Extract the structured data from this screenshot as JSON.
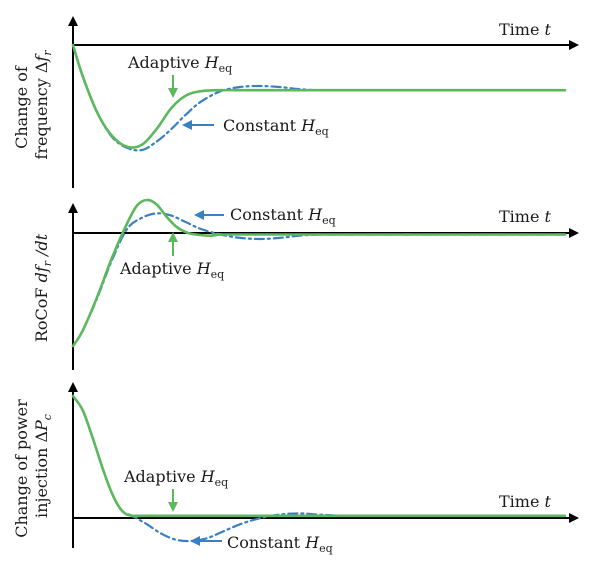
{
  "colors": {
    "axis": "#000000",
    "adaptive": "#5cb85c",
    "constant": "#3a7fc1"
  },
  "chart_data": [
    {
      "type": "line",
      "id": "panel-frequency",
      "ylabel_lines": [
        "Change of",
        "frequency Δ"
      ],
      "ylabel_sub": "r",
      "ylabel_sub_letter": "f",
      "xlabel": "Time ",
      "xlabel_var": "t",
      "xlim": [
        0,
        1
      ],
      "ylim": [
        -1.05,
        0.6
      ],
      "zero_at_top": true,
      "series": [
        {
          "name": "Adaptive H_eq",
          "style": "solid",
          "color": "adaptive",
          "x": [
            0,
            0.02,
            0.05,
            0.08,
            0.11,
            0.14,
            0.17,
            0.2,
            0.23,
            0.26,
            0.3,
            0.35,
            0.4,
            0.5,
            0.6,
            1.0
          ],
          "y": [
            0,
            -0.3,
            -0.65,
            -0.87,
            -0.97,
            -0.95,
            -0.8,
            -0.6,
            -0.48,
            -0.44,
            -0.43,
            -0.43,
            -0.43,
            -0.43,
            -0.43,
            -0.43
          ]
        },
        {
          "name": "Constant H_eq",
          "style": "dash-dot",
          "color": "constant",
          "x": [
            0,
            0.02,
            0.05,
            0.08,
            0.11,
            0.14,
            0.17,
            0.2,
            0.23,
            0.26,
            0.3,
            0.34,
            0.38,
            0.42,
            0.46,
            0.5,
            0.55,
            0.6,
            1.0
          ],
          "y": [
            0,
            -0.3,
            -0.65,
            -0.88,
            -0.98,
            -1.0,
            -0.92,
            -0.8,
            -0.66,
            -0.54,
            -0.44,
            -0.4,
            -0.39,
            -0.4,
            -0.42,
            -0.43,
            -0.43,
            -0.43,
            -0.43
          ]
        }
      ],
      "annotations": [
        {
          "prefix": "Adaptive ",
          "var": "H",
          "sub": "eq",
          "series": "Adaptive H_eq"
        },
        {
          "prefix": "Constant ",
          "var": "H",
          "sub": "eq",
          "series": "Constant H_eq"
        }
      ]
    },
    {
      "type": "line",
      "id": "panel-rocof",
      "ylabel_lines": [
        "RoCoF "
      ],
      "ylabel_var1": "df",
      "ylabel_sub": "r",
      "ylabel_tail": " /dt",
      "xlabel": "Time ",
      "xlabel_var": "t",
      "xlim": [
        0,
        1
      ],
      "ylim": [
        -1.05,
        0.35
      ],
      "series": [
        {
          "name": "Adaptive H_eq",
          "style": "solid",
          "color": "adaptive",
          "x": [
            0,
            0.02,
            0.05,
            0.08,
            0.11,
            0.13,
            0.15,
            0.17,
            0.19,
            0.21,
            0.23,
            0.25,
            0.28,
            0.3,
            0.35,
            1.0
          ],
          "y": [
            -1.0,
            -0.86,
            -0.55,
            -0.2,
            0.1,
            0.26,
            0.31,
            0.27,
            0.16,
            0.07,
            0.02,
            0.0,
            -0.01,
            0.0,
            0.0,
            0.0
          ]
        },
        {
          "name": "Constant H_eq",
          "style": "dash-dot",
          "color": "constant",
          "x": [
            0,
            0.02,
            0.05,
            0.08,
            0.11,
            0.14,
            0.17,
            0.2,
            0.23,
            0.26,
            0.3,
            0.34,
            0.38,
            0.42,
            0.46,
            0.5,
            0.55,
            1.0
          ],
          "y": [
            -1.0,
            -0.86,
            -0.56,
            -0.22,
            0.05,
            0.15,
            0.19,
            0.17,
            0.11,
            0.05,
            0.0,
            -0.03,
            -0.04,
            -0.03,
            -0.01,
            0.0,
            0.0,
            0.0
          ]
        }
      ],
      "annotations": [
        {
          "prefix": "Constant ",
          "var": "H",
          "sub": "eq",
          "series": "Constant H_eq"
        },
        {
          "prefix": "Adaptive ",
          "var": "H",
          "sub": "eq",
          "series": "Adaptive H_eq"
        }
      ]
    },
    {
      "type": "line",
      "id": "panel-power",
      "ylabel_lines": [
        "Change of power",
        "injection Δ"
      ],
      "ylabel_var1": "P",
      "ylabel_sub": "c",
      "xlabel": "Time ",
      "xlabel_var": "t",
      "xlim": [
        0,
        1
      ],
      "ylim": [
        -0.25,
        1.05
      ],
      "series": [
        {
          "name": "Adaptive H_eq",
          "style": "solid",
          "color": "adaptive",
          "x": [
            0,
            0.02,
            0.04,
            0.06,
            0.08,
            0.1,
            0.12,
            0.15,
            0.2,
            1.0
          ],
          "y": [
            1.0,
            0.88,
            0.65,
            0.4,
            0.18,
            0.04,
            0.0,
            0.0,
            0.0,
            0.0
          ]
        },
        {
          "name": "Constant H_eq",
          "style": "dash-dot",
          "color": "constant",
          "x": [
            0,
            0.02,
            0.04,
            0.06,
            0.08,
            0.1,
            0.12,
            0.15,
            0.18,
            0.21,
            0.24,
            0.27,
            0.3,
            0.34,
            0.38,
            0.42,
            0.46,
            0.5,
            0.55,
            0.6,
            1.0
          ],
          "y": [
            1.0,
            0.88,
            0.65,
            0.4,
            0.18,
            0.04,
            0.0,
            -0.07,
            -0.15,
            -0.2,
            -0.21,
            -0.19,
            -0.14,
            -0.07,
            -0.02,
            0.01,
            0.02,
            0.01,
            0.0,
            0.0,
            0.0
          ]
        }
      ],
      "annotations": [
        {
          "prefix": "Adaptive ",
          "var": "H",
          "sub": "eq",
          "series": "Adaptive H_eq"
        },
        {
          "prefix": "Constant ",
          "var": "H",
          "sub": "eq",
          "series": "Constant H_eq"
        }
      ]
    }
  ]
}
